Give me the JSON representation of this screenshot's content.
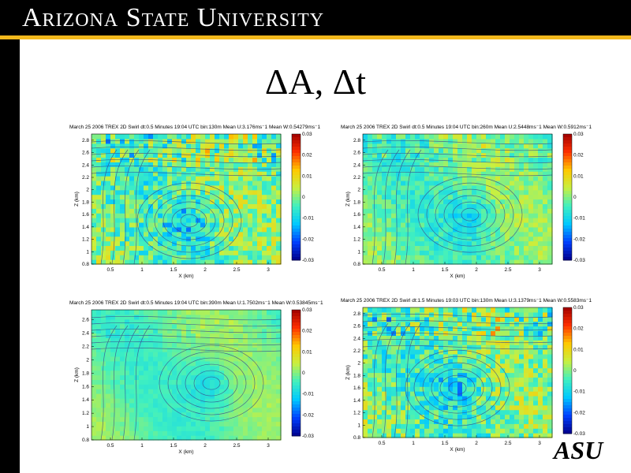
{
  "header": {
    "university_name": "Arizona State University"
  },
  "slide": {
    "title": "ΔA, Δt"
  },
  "logo": {
    "text": "ASU"
  },
  "colors": {
    "header_bg": "#000000",
    "accent_gold": "#f2b81c",
    "colorbar_scale": [
      "#00008c",
      "#0040ff",
      "#00c8ff",
      "#40f0c0",
      "#c8f040",
      "#ffc800",
      "#ff3000",
      "#a00000"
    ]
  },
  "chart_data": [
    {
      "type": "heatmap",
      "title": "March 25 2006 TREX 2D Swirl dt:0.5 Minutes  19:04 UTC  bin:130m Mean U:3.176ms⁻1 Mean W:0.54279ms⁻1",
      "xlabel": "X (km)",
      "ylabel": "Z (km)",
      "xticks": [
        "0.5",
        "1",
        "1.5",
        "2",
        "2.5",
        "3"
      ],
      "yticks": [
        "2.8",
        "2.6",
        "2.4",
        "2.2",
        "2",
        "1.8",
        "1.6",
        "1.4",
        "1.2",
        "1",
        "0.8"
      ],
      "colorbar_ticks": [
        "0.03",
        "0.02",
        "0.01",
        "0",
        "-0.01",
        "-0.02",
        "-0.03"
      ],
      "xlim": [
        0.2,
        3.2
      ],
      "ylim": [
        0.8,
        2.9
      ],
      "clim": [
        -0.03,
        0.03
      ],
      "vortex_center": [
        1.75,
        1.5
      ],
      "noise": "high"
    },
    {
      "type": "heatmap",
      "title": "March 25 2006 TREX 2D Swirl dt:0.5 Minutes  19:04 UTC  bin:260m Mean U:2.5448ms⁻1 Mean W:0.5912ms⁻1",
      "xlabel": "X (km)",
      "ylabel": "Z (km)",
      "xticks": [
        "0.5",
        "1",
        "1.5",
        "2",
        "2.5",
        "3"
      ],
      "yticks": [
        "2.8",
        "2.6",
        "2.4",
        "2.2",
        "2",
        "1.8",
        "1.6",
        "1.4",
        "1.2",
        "1",
        "0.8"
      ],
      "colorbar_ticks": [
        "0.03",
        "0.02",
        "0.01",
        "0",
        "-0.01",
        "-0.02",
        "-0.03"
      ],
      "xlim": [
        0.2,
        3.2
      ],
      "ylim": [
        0.8,
        2.9
      ],
      "clim": [
        -0.03,
        0.03
      ],
      "vortex_center": [
        1.9,
        1.6
      ],
      "noise": "medium"
    },
    {
      "type": "heatmap",
      "title": "March 25 2006 TREX 2D Swirl dt:0.5 Minutes  19:04 UTC  bin:390m Mean U:1.7502ms⁻1 Mean W:0.53845ms⁻1",
      "xlabel": "X (km)",
      "ylabel": "Z (km)",
      "xticks": [
        "0.5",
        "1",
        "1.5",
        "2",
        "2.5",
        "3"
      ],
      "yticks": [
        "2.6",
        "2.4",
        "2.2",
        "2",
        "1.8",
        "1.6",
        "1.4",
        "1.2",
        "1",
        "0.8"
      ],
      "colorbar_ticks": [
        "0.03",
        "0.02",
        "0.01",
        "0",
        "-0.01",
        "-0.02",
        "-0.03"
      ],
      "xlim": [
        0.2,
        3.2
      ],
      "ylim": [
        0.8,
        2.75
      ],
      "clim": [
        -0.03,
        0.03
      ],
      "vortex_center": [
        2.1,
        1.65
      ],
      "noise": "low"
    },
    {
      "type": "heatmap",
      "title": "March 25 2006 TREX 2D Swirl dt:1.5 Minutes  19:03 UTC  bin:130m Mean U:3.1379ms⁻1 Mean W:0.5583ms⁻1",
      "xlabel": "X (km)",
      "ylabel": "Z (km)",
      "xticks": [
        "0.5",
        "1",
        "1.5",
        "2",
        "2.5",
        "3"
      ],
      "yticks": [
        "2.8",
        "2.6",
        "2.4",
        "2.2",
        "2",
        "1.8",
        "1.6",
        "1.4",
        "1.2",
        "1",
        "0.8"
      ],
      "colorbar_ticks": [
        "0.03",
        "0.02",
        "0.01",
        "0",
        "-0.01",
        "-0.02",
        "-0.03"
      ],
      "xlim": [
        0.2,
        3.2
      ],
      "ylim": [
        0.8,
        2.9
      ],
      "clim": [
        -0.03,
        0.03
      ],
      "vortex_center": [
        1.7,
        1.6
      ],
      "noise": "high"
    }
  ]
}
